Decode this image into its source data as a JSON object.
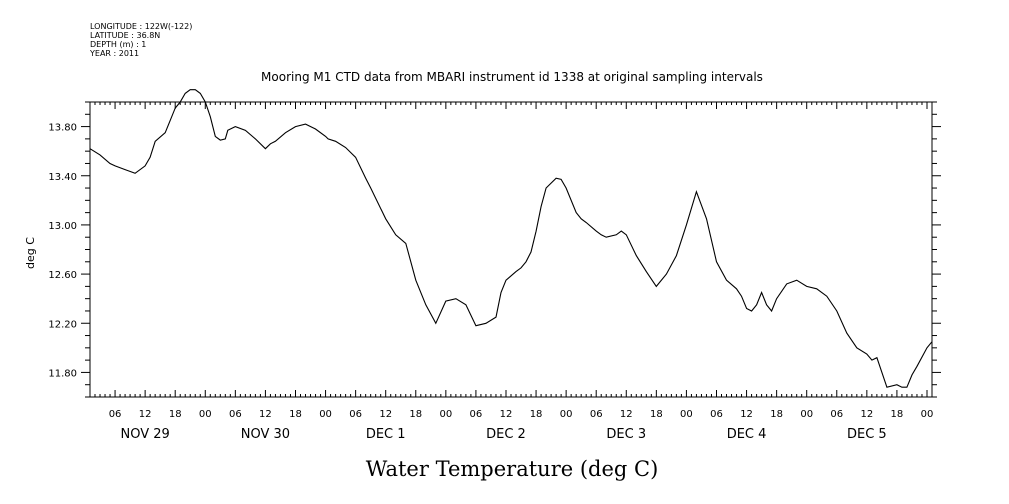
{
  "meta": {
    "longitude": "LONGITUDE : 122W(-122)",
    "latitude": "LATITUDE : 36.8N",
    "depth": "DEPTH (m) : 1",
    "year": "YEAR : 2011"
  },
  "chart_data": {
    "type": "line",
    "title": "Mooring M1 CTD data from MBARI instrument id 1338 at original sampling intervals",
    "xlabel": "Water Temperature (deg C)",
    "ylabel": "deg C",
    "ylim": [
      11.6,
      14.0
    ],
    "xlim": [
      1,
      169
    ],
    "yticks": [
      11.8,
      12.2,
      12.6,
      13.0,
      13.4,
      13.8
    ],
    "ytick_labels": [
      "11.80",
      "12.20",
      "12.60",
      "13.00",
      "13.40",
      "13.80"
    ],
    "hour_ticks": [
      "06",
      "12",
      "18",
      "00",
      "06",
      "12",
      "18",
      "00",
      "06",
      "12",
      "18",
      "00",
      "06",
      "12",
      "18",
      "00",
      "06",
      "12",
      "18",
      "00",
      "06",
      "12",
      "18",
      "00",
      "06",
      "12",
      "18",
      "00"
    ],
    "day_labels": [
      "NOV 29",
      "NOV 30",
      "DEC  1",
      "DEC  2",
      "DEC  3",
      "DEC  4",
      "DEC  5"
    ],
    "grid": false,
    "series": [
      {
        "x": [
          1,
          3,
          5,
          6,
          8,
          10,
          12,
          13,
          14,
          16,
          17,
          18,
          19,
          20,
          21,
          22,
          23,
          24,
          25,
          26,
          27,
          28,
          28.5,
          30,
          32,
          34,
          36,
          37,
          38,
          40,
          42,
          44,
          46,
          48,
          48.5,
          50,
          52,
          54,
          56,
          57,
          60,
          62,
          64,
          66,
          68,
          70,
          72,
          74,
          76,
          78,
          80,
          82,
          83,
          84,
          86,
          87,
          88,
          89,
          90,
          91,
          92,
          94,
          95,
          96,
          98,
          99,
          100,
          102,
          103,
          104,
          106,
          107,
          108,
          110,
          112,
          114,
          116,
          118,
          120,
          122,
          124,
          126,
          128,
          130,
          131,
          132,
          133,
          134,
          135,
          136,
          137,
          138,
          140,
          142,
          144,
          146,
          148,
          150,
          152,
          154,
          156,
          157,
          158,
          160,
          162,
          163,
          164,
          165,
          166,
          168,
          169
        ],
        "y": [
          13.62,
          13.57,
          13.5,
          13.48,
          13.45,
          13.42,
          13.48,
          13.55,
          13.68,
          13.75,
          13.85,
          13.95,
          14.0,
          14.07,
          14.1,
          14.1,
          14.07,
          14.0,
          13.88,
          13.72,
          13.69,
          13.7,
          13.77,
          13.8,
          13.77,
          13.7,
          13.62,
          13.66,
          13.68,
          13.75,
          13.8,
          13.82,
          13.78,
          13.72,
          13.7,
          13.68,
          13.63,
          13.55,
          13.38,
          13.3,
          13.05,
          12.92,
          12.85,
          12.55,
          12.35,
          12.2,
          12.38,
          12.4,
          12.35,
          12.18,
          12.2,
          12.25,
          12.45,
          12.55,
          12.62,
          12.65,
          12.7,
          12.78,
          12.95,
          13.15,
          13.3,
          13.38,
          13.37,
          13.3,
          13.1,
          13.05,
          13.02,
          12.95,
          12.92,
          12.9,
          12.92,
          12.95,
          12.92,
          12.75,
          12.62,
          12.5,
          12.6,
          12.75,
          13.0,
          13.27,
          13.05,
          12.7,
          12.55,
          12.48,
          12.42,
          12.32,
          12.3,
          12.35,
          12.45,
          12.35,
          12.3,
          12.4,
          12.52,
          12.55,
          12.5,
          12.48,
          12.42,
          12.3,
          12.12,
          12.0,
          11.95,
          11.9,
          11.92,
          11.68,
          11.7,
          11.68,
          11.68,
          11.78,
          11.85,
          12.0,
          12.05
        ]
      }
    ]
  }
}
